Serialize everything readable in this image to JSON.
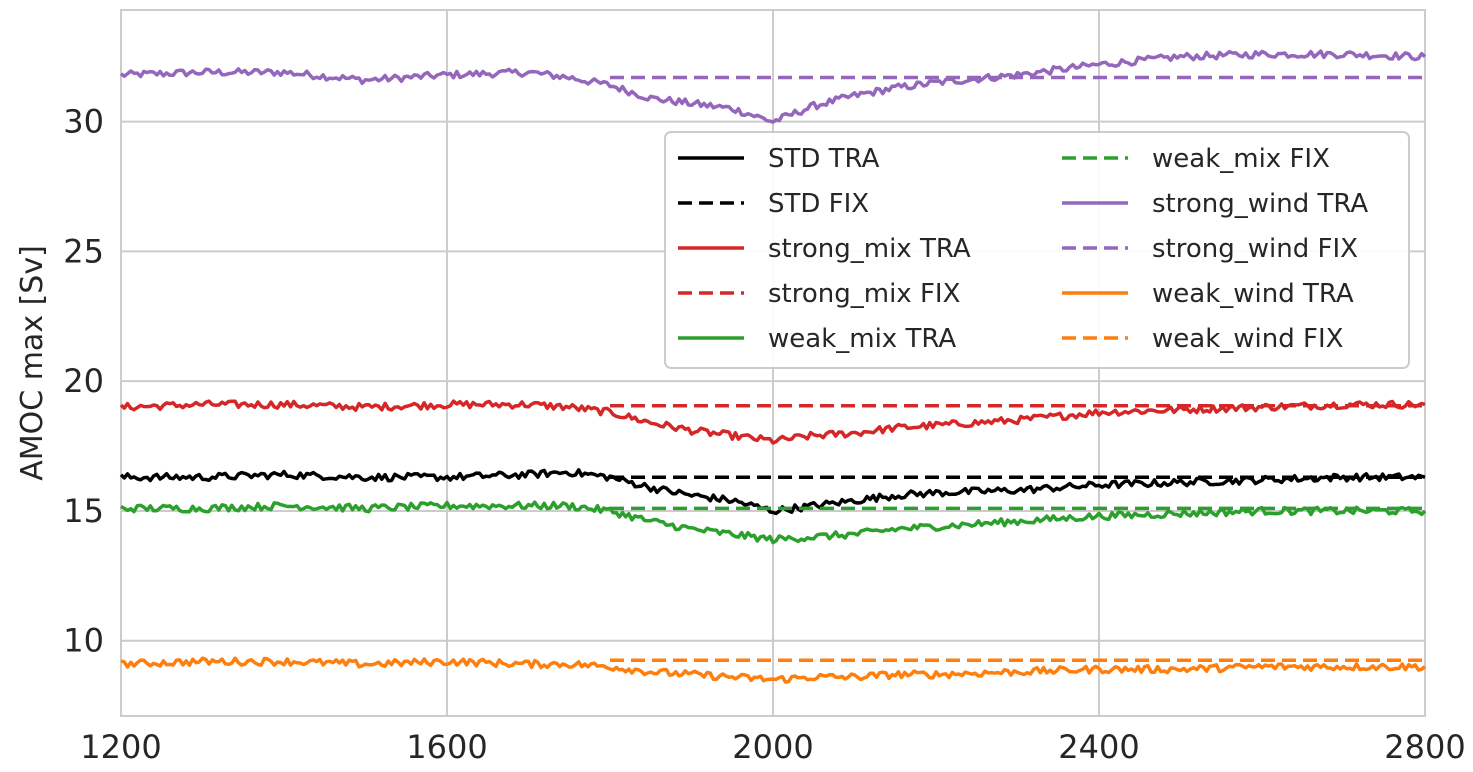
{
  "chart_data": {
    "type": "line",
    "title": "",
    "xlabel": "",
    "ylabel": "AMOC max [Sv]",
    "xlim": [
      1200,
      2800
    ],
    "ylim": [
      7.1,
      34.3
    ],
    "xticks": [
      1200,
      1600,
      2000,
      2400,
      2800
    ],
    "xtick_labels": [
      "1200",
      "1600",
      "2000",
      "2400",
      "2800"
    ],
    "yticks": [
      10,
      15,
      20,
      25,
      30
    ],
    "ytick_labels": [
      "10",
      "15",
      "20",
      "25",
      "30"
    ],
    "grid": true,
    "legend_position": "upper right, two columns",
    "series": [
      {
        "name": "STD TRA",
        "color": "#000000",
        "style": "solid",
        "x": [
          1200,
          1300,
          1400,
          1500,
          1600,
          1700,
          1750,
          1800,
          1850,
          1900,
          1950,
          2000,
          2050,
          2100,
          2150,
          2200,
          2300,
          2400,
          2500,
          2600,
          2700,
          2800
        ],
        "y": [
          16.3,
          16.3,
          16.4,
          16.3,
          16.3,
          16.4,
          16.5,
          16.3,
          15.9,
          15.6,
          15.4,
          15.0,
          15.2,
          15.4,
          15.6,
          15.7,
          15.8,
          16.0,
          16.1,
          16.2,
          16.3,
          16.3
        ]
      },
      {
        "name": "STD FIX",
        "color": "#000000",
        "style": "dashed",
        "x": [
          1800,
          2800
        ],
        "y": [
          16.3,
          16.3
        ]
      },
      {
        "name": "strong_mix TRA",
        "color": "#d62728",
        "style": "solid",
        "x": [
          1200,
          1300,
          1400,
          1500,
          1600,
          1700,
          1750,
          1800,
          1850,
          1900,
          1950,
          2000,
          2050,
          2100,
          2150,
          2200,
          2300,
          2400,
          2500,
          2600,
          2700,
          2800
        ],
        "y": [
          19.0,
          19.1,
          19.1,
          19.0,
          19.1,
          19.1,
          19.0,
          18.8,
          18.4,
          18.1,
          17.9,
          17.7,
          17.9,
          18.0,
          18.2,
          18.3,
          18.5,
          18.8,
          18.9,
          19.0,
          19.1,
          19.1
        ]
      },
      {
        "name": "strong_mix FIX",
        "color": "#d62728",
        "style": "dashed",
        "x": [
          1800,
          2800
        ],
        "y": [
          19.05,
          19.05
        ]
      },
      {
        "name": "weak_mix TRA",
        "color": "#2ca02c",
        "style": "solid",
        "x": [
          1200,
          1300,
          1400,
          1500,
          1600,
          1700,
          1750,
          1800,
          1850,
          1900,
          1950,
          2000,
          2050,
          2100,
          2150,
          2200,
          2300,
          2400,
          2500,
          2600,
          2700,
          2800
        ],
        "y": [
          15.1,
          15.1,
          15.2,
          15.1,
          15.2,
          15.2,
          15.2,
          15.0,
          14.6,
          14.3,
          14.1,
          13.9,
          14.0,
          14.1,
          14.3,
          14.4,
          14.6,
          14.8,
          14.9,
          15.0,
          15.0,
          15.0
        ]
      },
      {
        "name": "weak_mix FIX",
        "color": "#2ca02c",
        "style": "dashed",
        "x": [
          1800,
          2800
        ],
        "y": [
          15.1,
          15.1
        ]
      },
      {
        "name": "strong_wind TRA",
        "color": "#9467bd",
        "style": "solid",
        "x": [
          1200,
          1300,
          1400,
          1500,
          1600,
          1700,
          1750,
          1800,
          1850,
          1900,
          1950,
          2000,
          2050,
          2100,
          2150,
          2200,
          2300,
          2400,
          2500,
          2600,
          2700,
          2800
        ],
        "y": [
          31.8,
          31.9,
          31.9,
          31.6,
          31.8,
          31.9,
          31.7,
          31.4,
          30.9,
          30.7,
          30.5,
          30.0,
          30.6,
          31.0,
          31.3,
          31.5,
          31.8,
          32.2,
          32.5,
          32.6,
          32.6,
          32.5
        ]
      },
      {
        "name": "strong_wind FIX",
        "color": "#9467bd",
        "style": "dashed",
        "x": [
          1800,
          2800
        ],
        "y": [
          31.7,
          31.7
        ]
      },
      {
        "name": "weak_wind TRA",
        "color": "#ff7f0e",
        "style": "solid",
        "x": [
          1200,
          1300,
          1400,
          1500,
          1600,
          1700,
          1750,
          1800,
          1850,
          1900,
          1950,
          2000,
          2050,
          2100,
          2150,
          2200,
          2300,
          2400,
          2500,
          2600,
          2700,
          2800
        ],
        "y": [
          9.1,
          9.2,
          9.2,
          9.1,
          9.2,
          9.1,
          9.1,
          9.0,
          8.8,
          8.7,
          8.6,
          8.5,
          8.6,
          8.6,
          8.7,
          8.7,
          8.8,
          8.9,
          8.9,
          9.0,
          9.0,
          9.0
        ]
      },
      {
        "name": "weak_wind FIX",
        "color": "#ff7f0e",
        "style": "dashed",
        "x": [
          1800,
          2800
        ],
        "y": [
          9.25,
          9.25
        ]
      }
    ]
  }
}
